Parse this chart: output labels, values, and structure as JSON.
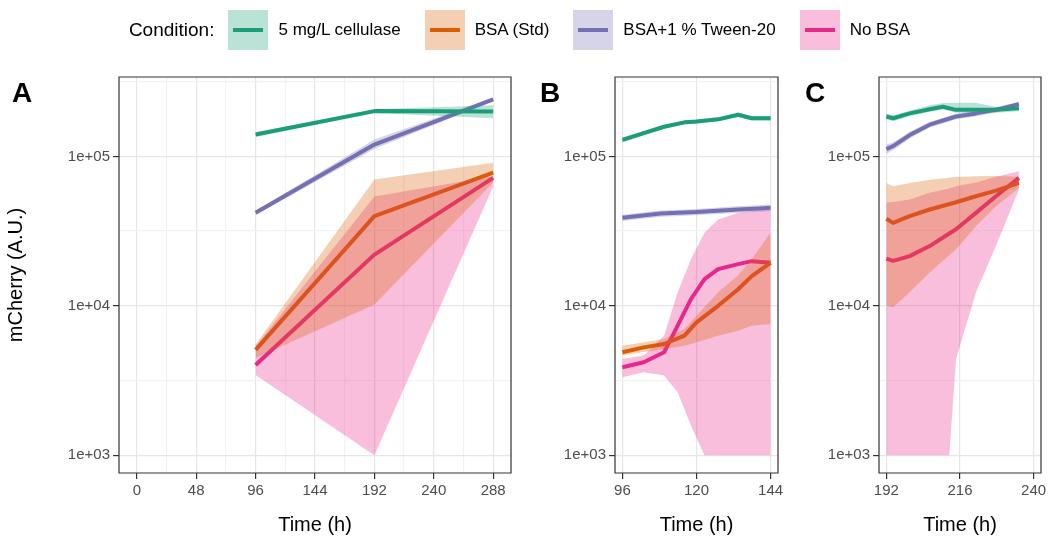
{
  "chart_data": [
    {
      "type": "line",
      "title": "A",
      "xlabel": "Time (h)",
      "ylabel": "mCherry (A.U.)",
      "log": "y",
      "grid": true,
      "legend": "top",
      "legend_title": "Condition:",
      "xlim": [
        -14.4,
        302.4
      ],
      "xticks": [
        0,
        {
          "value": 24,
          "label": null
        },
        48,
        {
          "value": 72,
          "label": null
        },
        96,
        {
          "value": 120,
          "label": null
        },
        144,
        {
          "value": 168,
          "label": null
        },
        192,
        {
          "value": 216,
          "label": null
        },
        240,
        {
          "value": 264,
          "label": null
        },
        288
      ],
      "ylim": [
        760,
        340000
      ],
      "yticks": [
        {
          "value": 1000,
          "label": "1e+03"
        },
        {
          "value": 3162,
          "label": null
        },
        {
          "value": 10000,
          "label": "1e+04"
        },
        {
          "value": 31623,
          "label": null
        },
        {
          "value": 100000,
          "label": "1e+05"
        },
        {
          "value": 316228,
          "label": null
        }
      ],
      "x": [
        96,
        192,
        288
      ],
      "series": [
        {
          "name": "5 mg/L cellulase",
          "color": "#1b9e77",
          "values": [
            140000,
            201000,
            200000
          ],
          "lower": [
            135000,
            195000,
            180000
          ],
          "upper": [
            145000,
            207000,
            220000
          ]
        },
        {
          "name": "BSA (Std)",
          "color": "#d95f02",
          "values": [
            5070,
            39800,
            77800
          ],
          "lower": [
            4470,
            10200,
            66900
          ],
          "upper": [
            5500,
            70100,
            90800
          ]
        },
        {
          "name": "BSA+1 % Tween-20",
          "color": "#7570b3",
          "values": [
            41900,
            120000,
            241000
          ],
          "lower": [
            40500,
            112000,
            235000
          ],
          "upper": [
            43300,
            130000,
            247000
          ]
        },
        {
          "name": "No BSA",
          "color": "#e7298a",
          "values": [
            4020,
            22000,
            71800
          ],
          "lower": [
            3440,
            1000,
            63000
          ],
          "upper": [
            5330,
            54000,
            73600
          ]
        }
      ]
    },
    {
      "type": "line",
      "title": "B",
      "xlabel": "Time (h)",
      "log": "y",
      "grid": true,
      "xlim": [
        93.6,
        146.4
      ],
      "xticks": [
        96,
        120,
        144
      ],
      "ylim": [
        760,
        340000
      ],
      "yticks": [
        {
          "value": 1000,
          "label": "1e+03"
        },
        {
          "value": 3162,
          "label": null
        },
        {
          "value": 10000,
          "label": "1e+04"
        },
        {
          "value": 31623,
          "label": null
        },
        {
          "value": 100000,
          "label": "1e+05"
        },
        {
          "value": 316228,
          "label": null
        }
      ],
      "series": [
        {
          "color": "#1b9e77",
          "x": [
            96,
            102.9,
            109.5,
            116.1,
            120,
            127,
            133.5,
            137.9,
            144
          ],
          "values": [
            129000,
            143000,
            158000,
            169000,
            171000,
            177000,
            190000,
            180000,
            180000
          ],
          "lower": [
            124000,
            138000,
            153000,
            164000,
            166000,
            172000,
            184000,
            174000,
            174000
          ],
          "upper": [
            134000,
            148000,
            163000,
            174000,
            176000,
            182000,
            196000,
            186000,
            186000
          ]
        },
        {
          "color": "#d95f02",
          "x": [
            96,
            102.9,
            109.5,
            116.1,
            120,
            127,
            133.5,
            137.9,
            144
          ],
          "values": [
            4890,
            5270,
            5550,
            6310,
            7740,
            10000,
            12900,
            15800,
            19400
          ],
          "lower": [
            4640,
            4900,
            5140,
            5400,
            5700,
            6310,
            6800,
            7360,
            7550
          ],
          "upper": [
            5410,
            5700,
            6000,
            7000,
            8580,
            12300,
            16000,
            20500,
            30800
          ]
        },
        {
          "color": "#7570b3",
          "x": [
            96,
            108.4,
            120,
            133.5,
            144
          ],
          "values": [
            38800,
            41500,
            42400,
            44100,
            45300
          ],
          "lower": [
            37000,
            39500,
            40300,
            41900,
            43000
          ],
          "upper": [
            40700,
            43500,
            44500,
            46300,
            47600
          ]
        },
        {
          "color": "#e7298a",
          "x": [
            96,
            102.9,
            109.5,
            113.9,
            118.2,
            122.6,
            127,
            133.5,
            137.9,
            144
          ],
          "values": [
            3880,
            4190,
            4890,
            7360,
            11100,
            15100,
            17600,
            19000,
            19900,
            19400
          ],
          "lower": [
            3330,
            3590,
            3410,
            2640,
            1580,
            1000,
            1000,
            1000,
            1000,
            1000
          ],
          "upper": [
            4400,
            4640,
            6310,
            12300,
            20500,
            30800,
            37800,
            41900,
            43000,
            44100
          ]
        }
      ]
    },
    {
      "type": "line",
      "title": "C",
      "xlabel": "Time (h)",
      "log": "y",
      "grid": true,
      "xlim": [
        189.6,
        242.4
      ],
      "xticks": [
        192,
        216,
        240
      ],
      "ylim": [
        760,
        340000
      ],
      "yticks": [
        {
          "value": 1000,
          "label": "1e+03"
        },
        {
          "value": 3162,
          "label": null
        },
        {
          "value": 10000,
          "label": "1e+04"
        },
        {
          "value": 31623,
          "label": null
        },
        {
          "value": 100000,
          "label": "1e+05"
        },
        {
          "value": 316228,
          "label": null
        }
      ],
      "series": [
        {
          "color": "#1b9e77",
          "x": [
            192,
            194.2,
            199.6,
            206.1,
            210.4,
            214.7,
            221.2,
            227.7,
            235.2
          ],
          "values": [
            185000,
            180000,
            194000,
            207000,
            215000,
            205000,
            205000,
            205000,
            210000
          ],
          "lower": [
            177000,
            172000,
            186000,
            199000,
            206000,
            196000,
            196000,
            196000,
            201000
          ],
          "upper": [
            193000,
            188000,
            202000,
            220000,
            228000,
            229000,
            229000,
            214000,
            219000
          ]
        },
        {
          "color": "#d95f02",
          "x": [
            192,
            194.2,
            199.6,
            206.1,
            214.7,
            221.2,
            227.7,
            235.2
          ],
          "values": [
            38200,
            35900,
            39800,
            44100,
            49300,
            54100,
            59000,
            66400
          ],
          "lower": [
            10000,
            9790,
            12300,
            16700,
            23900,
            34100,
            46400,
            61500
          ],
          "upper": [
            66400,
            63100,
            66400,
            69800,
            72800,
            73600,
            74000,
            73000
          ]
        },
        {
          "color": "#7570b3",
          "x": [
            192,
            194.2,
            199.6,
            206.1,
            214.7,
            221.2,
            227.7,
            235.2
          ],
          "values": [
            112000,
            117000,
            139000,
            163000,
            185000,
            194000,
            205000,
            224000
          ],
          "lower": [
            104000,
            110000,
            132000,
            156000,
            177000,
            186000,
            197000,
            216000
          ],
          "upper": [
            120000,
            124000,
            146000,
            170000,
            193000,
            202000,
            213000,
            232000
          ]
        },
        {
          "color": "#e7298a",
          "x": [
            192,
            194.2,
            199.6,
            206.1,
            212.5,
            214.7,
            221.2,
            227.7,
            235.2
          ],
          "values": [
            20700,
            20000,
            21500,
            25100,
            30500,
            32500,
            41900,
            54100,
            71800
          ],
          "lower": [
            1000,
            1000,
            1000,
            1000,
            1000,
            4400,
            12300,
            25100,
            60000
          ],
          "upper": [
            48900,
            49500,
            51400,
            57000,
            61000,
            63100,
            67000,
            73000,
            79400
          ]
        }
      ]
    }
  ]
}
